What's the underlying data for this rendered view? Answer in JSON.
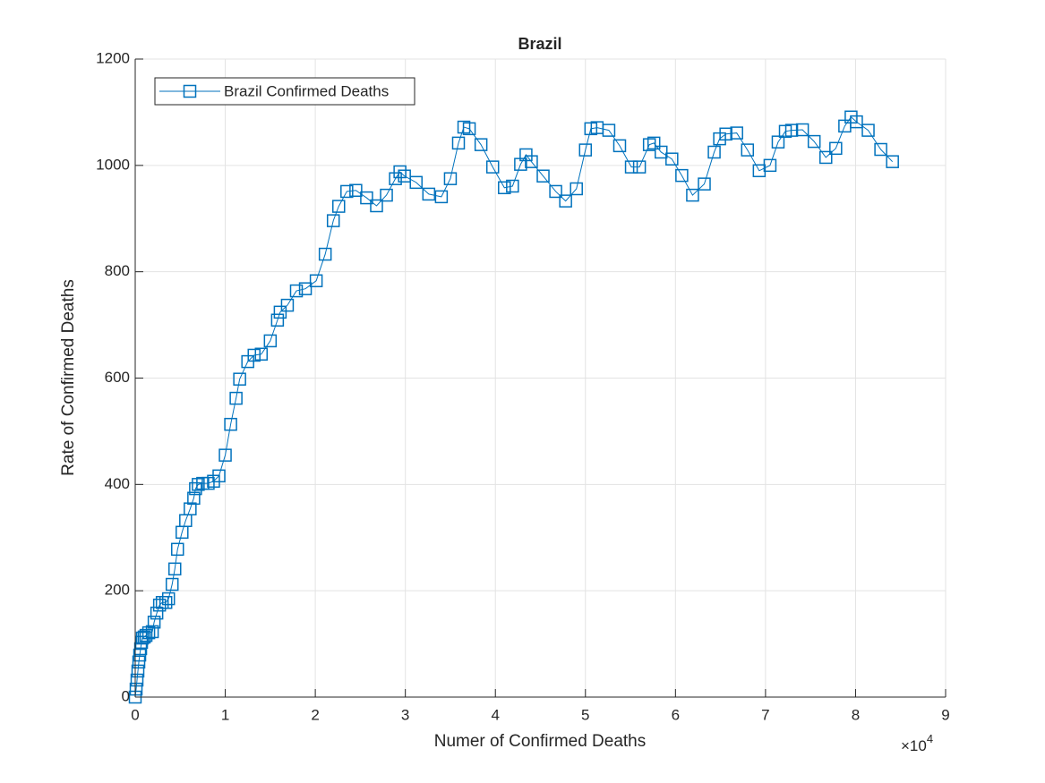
{
  "chart_data": {
    "type": "line",
    "title": "Brazil",
    "x_label": "Numer of Confirmed Deaths",
    "y_label": "Rate of Confirmed Deaths",
    "x_exponent": {
      "base": "×10",
      "power": "4"
    },
    "legend": "northwest",
    "grid": true,
    "marker": "square",
    "x": [
      0,
      100,
      200,
      300,
      400,
      500,
      600,
      700,
      800,
      1000,
      1200,
      1500,
      1900,
      2100,
      2400,
      2700,
      3000,
      3400,
      3700,
      4100,
      4400,
      4700,
      5200,
      5600,
      6100,
      6500,
      6700,
      7000,
      7500,
      8100,
      8700,
      9300,
      10000,
      10600,
      11200,
      11600,
      12500,
      13200,
      14000,
      15000,
      15800,
      16100,
      16900,
      17900,
      18900,
      20100,
      21100,
      22000,
      22600,
      23500,
      24500,
      25700,
      26800,
      27900,
      28900,
      29400,
      29900,
      31200,
      32600,
      34000,
      35000,
      35900,
      36500,
      37100,
      38400,
      39700,
      41000,
      41900,
      42800,
      43400,
      44000,
      45300,
      46700,
      47800,
      49000,
      50000,
      50600,
      51300,
      52600,
      53800,
      55100,
      56000,
      57100,
      57600,
      58400,
      59600,
      60700,
      61900,
      63200,
      64300,
      64900,
      65600,
      66800,
      68000,
      69300,
      70500,
      71400,
      72200,
      72900,
      74100,
      75400,
      76700,
      77800,
      78800,
      79500,
      80100,
      81400,
      82800,
      84100
    ],
    "series": [
      {
        "name": "Brazil Confirmed Deaths",
        "color": "#0072bd",
        "values": [
          0,
          15,
          32,
          49,
          66,
          79,
          91,
          103,
          111,
          113,
          116,
          121,
          123,
          141,
          158,
          173,
          178,
          178,
          185,
          212,
          241,
          278,
          310,
          332,
          354,
          374,
          392,
          400,
          402,
          402,
          406,
          416,
          455,
          513,
          562,
          598,
          631,
          643,
          645,
          670,
          709,
          724,
          737,
          764,
          768,
          783,
          833,
          896,
          923,
          951,
          953,
          939,
          924,
          944,
          975,
          988,
          980,
          968,
          946,
          941,
          975,
          1042,
          1072,
          1069,
          1039,
          997,
          958,
          961,
          1002,
          1020,
          1007,
          980,
          951,
          933,
          956,
          1029,
          1069,
          1071,
          1066,
          1037,
          997,
          997,
          1039,
          1042,
          1025,
          1012,
          981,
          944,
          965,
          1025,
          1050,
          1059,
          1061,
          1029,
          990,
          1000,
          1044,
          1064,
          1066,
          1067,
          1045,
          1015,
          1032,
          1074,
          1091,
          1082,
          1066,
          1030,
          1007
        ]
      }
    ],
    "xlim": [
      0,
      90000
    ],
    "xticks": [
      {
        "value": 0,
        "label": "0"
      },
      {
        "value": 10000,
        "label": "1"
      },
      {
        "value": 20000,
        "label": "2"
      },
      {
        "value": 30000,
        "label": "3"
      },
      {
        "value": 40000,
        "label": "4"
      },
      {
        "value": 50000,
        "label": "5"
      },
      {
        "value": 60000,
        "label": "6"
      },
      {
        "value": 70000,
        "label": "7"
      },
      {
        "value": 80000,
        "label": "8"
      },
      {
        "value": 90000,
        "label": "9"
      }
    ],
    "ylim": [
      0,
      1200
    ],
    "yticks": [
      0,
      200,
      400,
      600,
      800,
      1000,
      1200
    ]
  }
}
